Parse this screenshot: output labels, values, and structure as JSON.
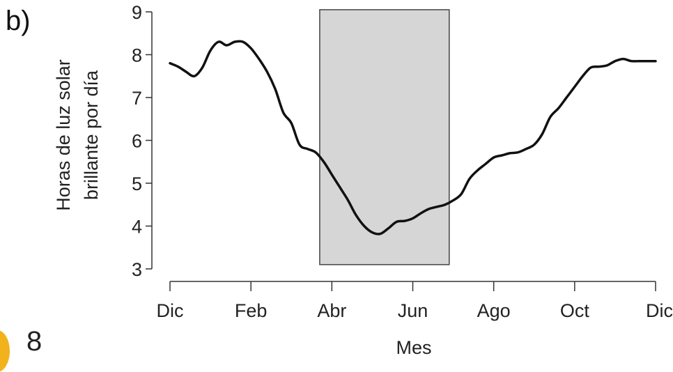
{
  "figure": {
    "panel_label": "b)",
    "page_number": "8"
  },
  "colors": {
    "line": "#111111",
    "shade_fill": "#d6d6d6",
    "shade_stroke": "#444444",
    "axis": "#333333",
    "accent_corner": "#f2b21b"
  },
  "chart_data": {
    "type": "line",
    "xlabel": "Mes",
    "ylabel_lines": [
      "Horas de luz solar",
      "brillante por día"
    ],
    "x_tick_labels": [
      "Dic",
      "Feb",
      "Abr",
      "Jun",
      "Ago",
      "Oct",
      "Dic"
    ],
    "xlim": [
      0,
      12
    ],
    "ylim": [
      3,
      9
    ],
    "y_ticks": [
      3,
      4,
      5,
      6,
      7,
      8,
      9
    ],
    "grid": false,
    "shaded_region": {
      "x_range": [
        3.7,
        6.9
      ],
      "y_range": [
        3.1,
        9.05
      ]
    },
    "series": [
      {
        "x": [
          0,
          0.2,
          0.4,
          0.6,
          0.8,
          1.0,
          1.2,
          1.4,
          1.6,
          1.8,
          2.0,
          2.2,
          2.4,
          2.6,
          2.8,
          3.0,
          3.2,
          3.4,
          3.6,
          3.8,
          4.0,
          4.2,
          4.4,
          4.6,
          4.8,
          5.0,
          5.2,
          5.4,
          5.6,
          5.8,
          6.0,
          6.2,
          6.4,
          6.6,
          6.8,
          7.0,
          7.2,
          7.4,
          7.6,
          7.8,
          8.0,
          8.2,
          8.4,
          8.6,
          8.8,
          9.0,
          9.2,
          9.4,
          9.6,
          9.8,
          10.0,
          10.2,
          10.4,
          10.6,
          10.8,
          11.0,
          11.2,
          11.4,
          11.6,
          11.8,
          12.0
        ],
        "values": [
          7.8,
          7.72,
          7.6,
          7.5,
          7.7,
          8.1,
          8.3,
          8.22,
          8.3,
          8.3,
          8.15,
          7.9,
          7.6,
          7.2,
          6.65,
          6.4,
          5.9,
          5.8,
          5.72,
          5.5,
          5.2,
          4.9,
          4.6,
          4.25,
          4.0,
          3.85,
          3.82,
          3.95,
          4.1,
          4.12,
          4.18,
          4.3,
          4.4,
          4.45,
          4.5,
          4.6,
          4.75,
          5.1,
          5.3,
          5.45,
          5.6,
          5.65,
          5.7,
          5.72,
          5.8,
          5.9,
          6.15,
          6.55,
          6.75,
          7.0,
          7.25,
          7.5,
          7.7,
          7.72,
          7.75,
          7.85,
          7.9,
          7.85,
          7.85,
          7.85,
          7.85
        ]
      }
    ]
  }
}
